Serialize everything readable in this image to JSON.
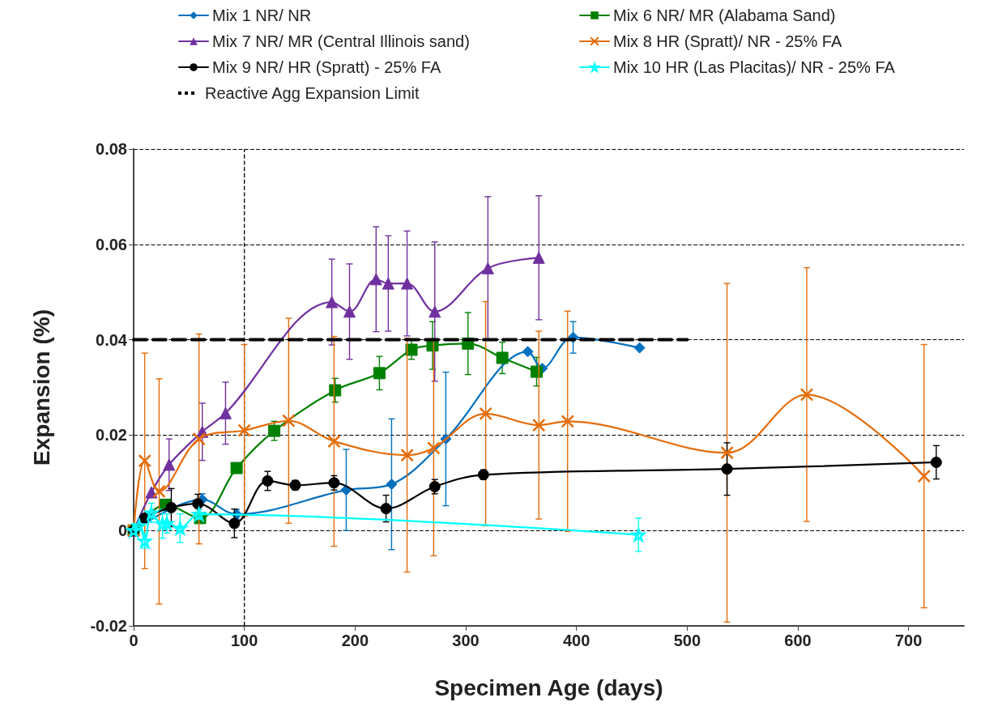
{
  "chart_data": {
    "type": "line",
    "xlabel": "Specimen Age (days)",
    "ylabel": "Expansion (%)",
    "xlim": [
      0,
      750
    ],
    "xticks": [
      0,
      100,
      200,
      300,
      400,
      500,
      600,
      700
    ],
    "ylim": [
      -0.02,
      0.08
    ],
    "yticks": [
      -0.02,
      0,
      0.02,
      0.04,
      0.06,
      0.08
    ],
    "grid": "y",
    "legend": "top",
    "ref_lines": [
      {
        "axis": "x",
        "value": 100,
        "label": null,
        "color": "#000000",
        "line_style": "dashed"
      }
    ],
    "series": [
      {
        "name": "Mix 1 NR/ NR",
        "color": "#0070c0",
        "marker": "diamond",
        "x": [
          0,
          62,
          93,
          192,
          233,
          282,
          356,
          369,
          397,
          457
        ],
        "values": [
          0,
          0.0065,
          0.0034,
          0.0085,
          0.0097,
          0.0192,
          0.0375,
          0.034,
          0.0405,
          0.0383
        ],
        "errors": [
          null,
          0.0012,
          0.001,
          0.0085,
          0.0137,
          0.014,
          null,
          null,
          0.0033,
          null
        ]
      },
      {
        "name": "Mix 6 NR/ MR (Alabama Sand)",
        "color": "#008000",
        "marker": "square",
        "x": [
          0,
          29,
          60,
          93,
          127,
          182,
          222,
          251,
          270,
          302,
          333,
          364
        ],
        "values": [
          0,
          0.0054,
          0.0026,
          0.0131,
          0.0209,
          0.0294,
          0.033,
          0.0379,
          0.0388,
          0.0392,
          0.0362,
          0.0333
        ],
        "errors": [
          null,
          null,
          null,
          null,
          0.002,
          0.0025,
          0.0035,
          0.002,
          0.005,
          0.0065,
          0.0033,
          0.003
        ]
      },
      {
        "name": "Mix 7 NR/ MR (Central Illinois sand)",
        "color": "#7030a0",
        "marker": "triangle",
        "x": [
          0,
          16,
          32,
          62,
          83,
          179,
          195,
          219,
          230,
          247,
          272,
          320,
          366
        ],
        "values": [
          0,
          0.008,
          0.0138,
          0.0207,
          0.0246,
          0.0479,
          0.0459,
          0.0527,
          0.0518,
          0.0518,
          0.0459,
          0.055,
          0.0572
        ],
        "errors": [
          null,
          null,
          0.0054,
          0.006,
          0.0065,
          0.009,
          0.01,
          0.011,
          0.01,
          0.011,
          0.0146,
          0.015,
          0.013
        ]
      },
      {
        "name": "Mix 8 HR (Spratt)/ NR - 25% FA",
        "color": "#e46c0a",
        "marker": "cross",
        "x": [
          0,
          10,
          23,
          59,
          100,
          140,
          181,
          247,
          271,
          318,
          366,
          392,
          536,
          608,
          714
        ],
        "values": [
          0,
          0.0146,
          0.0082,
          0.0192,
          0.021,
          0.023,
          0.0187,
          0.0158,
          0.0173,
          0.0245,
          0.0221,
          0.0229,
          0.0163,
          0.0285,
          0.0114
        ],
        "errors": [
          null,
          0.0226,
          0.0236,
          0.022,
          0.018,
          0.0215,
          0.022,
          0.0245,
          0.0226,
          0.0235,
          0.0197,
          0.0231,
          0.0355,
          0.0266,
          0.0276
        ]
      },
      {
        "name": "Mix 9 NR/ HR (Spratt) - 25% FA",
        "color": "#000000",
        "marker": "circle",
        "x": [
          0,
          10,
          34,
          58,
          91,
          121,
          146,
          181,
          228,
          272,
          316,
          536,
          725
        ],
        "values": [
          0,
          0.0026,
          0.0048,
          0.0056,
          0.0015,
          0.0104,
          0.0095,
          0.01,
          0.0046,
          0.0092,
          0.0117,
          0.0129,
          0.0143
        ],
        "errors": [
          null,
          null,
          0.004,
          0.002,
          0.003,
          0.002,
          0.001,
          0.0015,
          0.0028,
          0.0015,
          0.001,
          0.0055,
          0.0035
        ]
      },
      {
        "name": "Mix 10 HR (Las Placitas)/ NR - 25% FA",
        "color": "#00ffff",
        "marker": "star",
        "x": [
          0,
          5,
          10,
          16,
          26,
          30,
          42,
          59,
          456
        ],
        "values": [
          0,
          0.001,
          -0.0022,
          0.0037,
          0.0014,
          0.0015,
          0.0005,
          0.0034,
          -0.0009
        ],
        "errors": [
          null,
          null,
          0.0015,
          0.002,
          0.003,
          0.002,
          0.003,
          0.001,
          0.0035
        ]
      },
      {
        "name": "Reactive Agg Expansion Limit",
        "color": "#000000",
        "marker": "none",
        "line_style": "dashed",
        "x": [
          0,
          500
        ],
        "values": [
          0.04,
          0.04
        ]
      }
    ]
  }
}
